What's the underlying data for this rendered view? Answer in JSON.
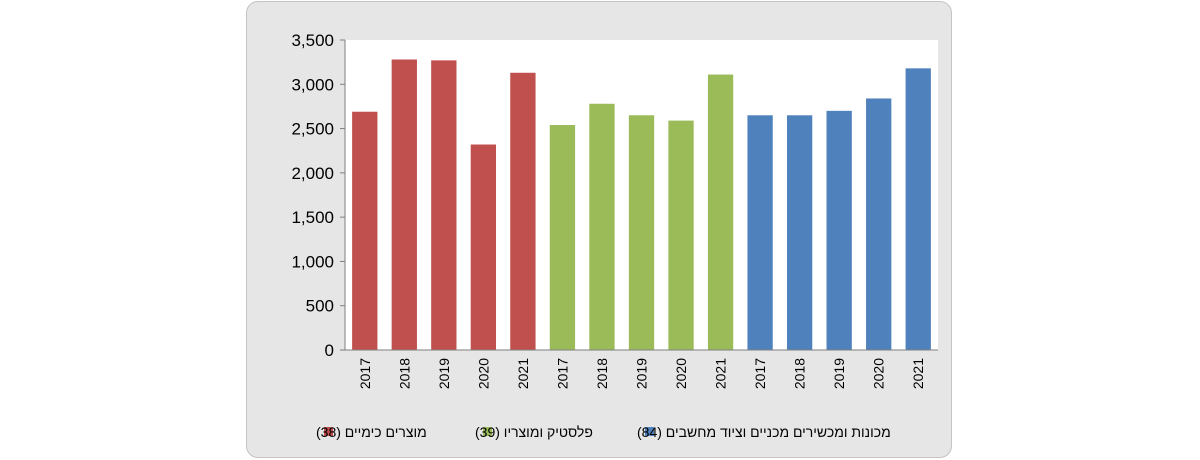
{
  "chart_data": {
    "type": "bar",
    "ylim": [
      0,
      3500
    ],
    "ytick_step": 500,
    "yticks": [
      "0",
      "500",
      "1,000",
      "1,500",
      "2,000",
      "2,500",
      "3,000",
      "3,500"
    ],
    "grid": false,
    "legend_position": "bottom",
    "series": [
      {
        "name": "מוצרים כימיים (38)",
        "color": "#c0504d",
        "categories": [
          "2017",
          "2018",
          "2019",
          "2020",
          "2021"
        ],
        "values": [
          2690,
          3280,
          3270,
          2320,
          3130
        ]
      },
      {
        "name": "פלסטיק ומוצריו (39)",
        "color": "#9bbb59",
        "categories": [
          "2017",
          "2018",
          "2019",
          "2020",
          "2021"
        ],
        "values": [
          2540,
          2780,
          2650,
          2590,
          3110
        ]
      },
      {
        "name": "מכונות ומכשירים מכניים וציוד מחשבים (84)",
        "color": "#4f81bd",
        "categories": [
          "2017",
          "2018",
          "2019",
          "2020",
          "2021"
        ],
        "values": [
          2650,
          2650,
          2700,
          2840,
          3180
        ]
      }
    ]
  }
}
